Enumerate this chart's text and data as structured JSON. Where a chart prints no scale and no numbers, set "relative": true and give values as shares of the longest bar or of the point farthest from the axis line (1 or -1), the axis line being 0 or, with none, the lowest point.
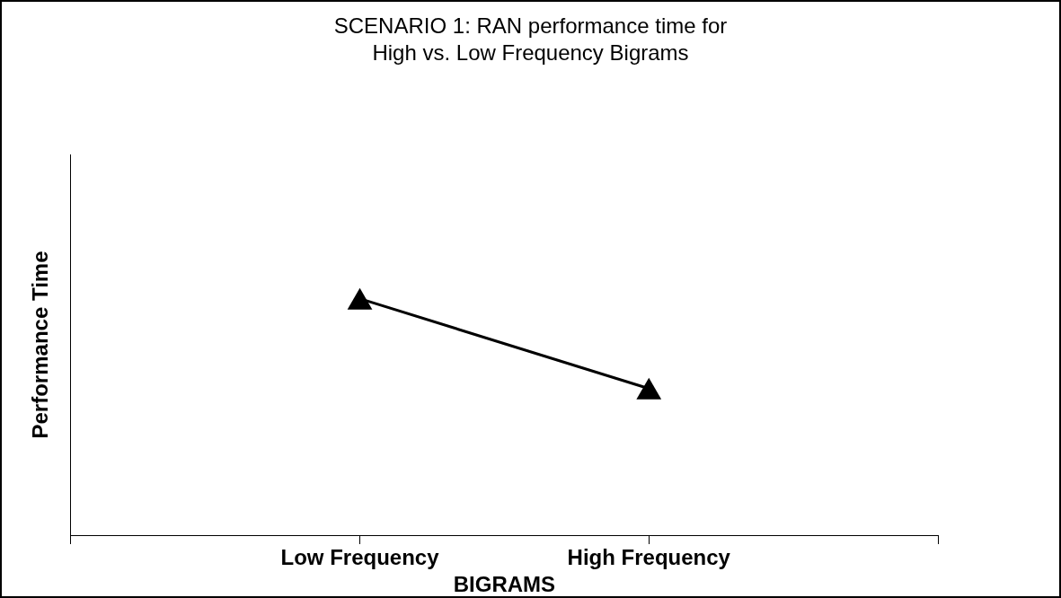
{
  "chart_data": {
    "type": "line",
    "title": "SCENARIO 1: RAN performance time for\nHigh vs. Low Frequency Bigrams",
    "xlabel": "BIGRAMS",
    "ylabel": "Performance Time",
    "categories": [
      null,
      "Low Frequency",
      "High Frequency",
      null
    ],
    "series": [
      {
        "color": "#000000",
        "values": [
          null,
          1,
          0.62,
          null
        ]
      }
    ],
    "relative": true,
    "marker": "triangle",
    "line_style": "solid",
    "legend": false
  }
}
